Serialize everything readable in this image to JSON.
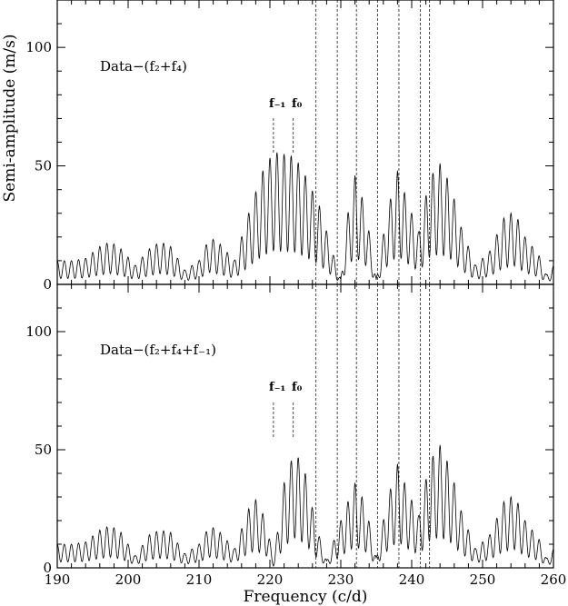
{
  "chart_data": {
    "type": "line",
    "xlabel": "Frequency (c/d)",
    "ylabel": "Semi-amplitude (m/s)",
    "xlim": [
      190,
      260
    ],
    "x_ticks": [
      190,
      200,
      210,
      220,
      230,
      240,
      250,
      260
    ],
    "grid": false,
    "vertical_reference_lines": [
      226.5,
      229.5,
      232.2,
      235.2,
      238.2,
      241.2,
      242.5
    ],
    "panels": [
      {
        "annotation": "Data−(f₂+f₄)",
        "ylim": [
          0,
          120
        ],
        "y_ticks": [
          0,
          50,
          100
        ],
        "peak_markers": [
          {
            "label": "f₋₁",
            "x": 220.5
          },
          {
            "label": "f₀",
            "x": 223.3
          }
        ],
        "envelope": [
          [
            190,
            10
          ],
          [
            192,
            10
          ],
          [
            194,
            11
          ],
          [
            196,
            16
          ],
          [
            197.5,
            18
          ],
          [
            199,
            15
          ],
          [
            201,
            8
          ],
          [
            203,
            15
          ],
          [
            204.5,
            18
          ],
          [
            206,
            16
          ],
          [
            208,
            6
          ],
          [
            210,
            10
          ],
          [
            211.5,
            20
          ],
          [
            213,
            17
          ],
          [
            215,
            10
          ],
          [
            217,
            30
          ],
          [
            219,
            48
          ],
          [
            220.5,
            56
          ],
          [
            222,
            55
          ],
          [
            223.5,
            54
          ],
          [
            225,
            46
          ],
          [
            227,
            33
          ],
          [
            229,
            12
          ],
          [
            230,
            2
          ],
          [
            231,
            30
          ],
          [
            232,
            46
          ],
          [
            233.5,
            32
          ],
          [
            235,
            2
          ],
          [
            236.5,
            30
          ],
          [
            238,
            48
          ],
          [
            239.5,
            34
          ],
          [
            241,
            22
          ],
          [
            242.5,
            45
          ],
          [
            244,
            51
          ],
          [
            245.5,
            42
          ],
          [
            247,
            24
          ],
          [
            249,
            8
          ],
          [
            251,
            14
          ],
          [
            253,
            28
          ],
          [
            254.5,
            31
          ],
          [
            256,
            20
          ],
          [
            258,
            12
          ],
          [
            259,
            4
          ],
          [
            260,
            8
          ]
        ]
      },
      {
        "annotation": "Data−(f₂+f₄+f₋₁)",
        "ylim": [
          0,
          120
        ],
        "y_ticks": [
          0,
          50,
          100
        ],
        "peak_markers": [
          {
            "label": "f₋₁",
            "x": 220.5
          },
          {
            "label": "f₀",
            "x": 223.3
          }
        ],
        "envelope": [
          [
            190,
            10
          ],
          [
            192,
            10
          ],
          [
            194,
            11
          ],
          [
            196,
            16
          ],
          [
            197.5,
            18
          ],
          [
            199,
            15
          ],
          [
            201,
            5
          ],
          [
            203,
            14
          ],
          [
            204.5,
            16
          ],
          [
            206,
            15
          ],
          [
            208,
            6
          ],
          [
            210,
            10
          ],
          [
            211.5,
            18
          ],
          [
            213,
            15
          ],
          [
            215,
            8
          ],
          [
            217,
            25
          ],
          [
            218,
            29
          ],
          [
            219.5,
            20
          ],
          [
            220.5,
            3
          ],
          [
            222,
            36
          ],
          [
            223.5,
            50
          ],
          [
            225,
            40
          ],
          [
            226.5,
            18
          ],
          [
            228,
            3
          ],
          [
            230,
            20
          ],
          [
            232,
            36
          ],
          [
            233.5,
            27
          ],
          [
            235,
            4
          ],
          [
            236.5,
            28
          ],
          [
            238,
            44
          ],
          [
            239.5,
            32
          ],
          [
            241,
            22
          ],
          [
            242.5,
            45
          ],
          [
            244,
            52
          ],
          [
            245.5,
            42
          ],
          [
            247,
            24
          ],
          [
            249,
            8
          ],
          [
            251,
            14
          ],
          [
            253,
            28
          ],
          [
            254.5,
            31
          ],
          [
            256,
            20
          ],
          [
            258,
            12
          ],
          [
            259,
            4
          ],
          [
            260,
            8
          ]
        ]
      }
    ]
  }
}
